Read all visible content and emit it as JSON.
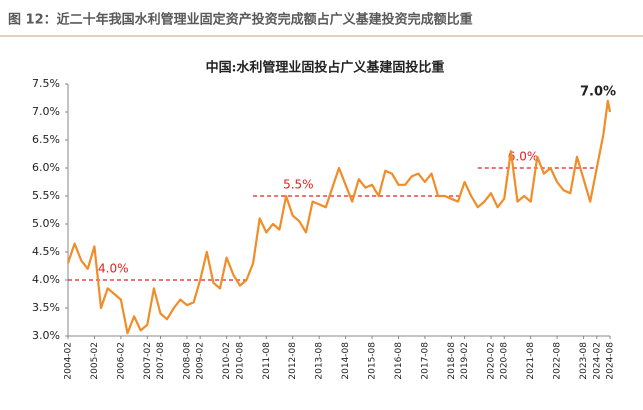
{
  "header": {
    "title": "图 12：近二十年我国水利管理业固定资产投资完成额占广义基建投资完成额比重"
  },
  "chart_data": {
    "type": "line",
    "title": "中国:水利管理业固投占广义基建固投比重",
    "x": [
      "2004-02",
      "2004-05",
      "2004-08",
      "2004-11",
      "2005-02",
      "2005-05",
      "2005-08",
      "2005-11",
      "2006-02",
      "2006-05",
      "2006-08",
      "2006-11",
      "2007-02",
      "2007-05",
      "2007-08",
      "2007-11",
      "2008-02",
      "2008-05",
      "2008-08",
      "2008-11",
      "2009-02",
      "2009-05",
      "2009-08",
      "2009-11",
      "2010-02",
      "2010-05",
      "2010-08",
      "2010-11",
      "2011-02",
      "2011-05",
      "2011-08",
      "2011-11",
      "2012-02",
      "2012-05",
      "2012-08",
      "2012-11",
      "2013-02",
      "2013-05",
      "2013-08",
      "2013-11",
      "2014-02",
      "2014-05",
      "2014-08",
      "2014-11",
      "2015-02",
      "2015-05",
      "2015-08",
      "2015-11",
      "2016-02",
      "2016-05",
      "2016-08",
      "2016-11",
      "2017-02",
      "2017-05",
      "2017-08",
      "2017-11",
      "2018-02",
      "2018-05",
      "2018-08",
      "2018-11",
      "2019-02",
      "2019-05",
      "2019-08",
      "2019-11",
      "2020-02",
      "2020-05",
      "2020-08",
      "2020-11",
      "2021-02",
      "2021-05",
      "2021-08",
      "2021-11",
      "2022-02",
      "2022-05",
      "2022-08",
      "2022-11",
      "2023-02",
      "2023-05",
      "2023-08",
      "2023-11",
      "2024-02",
      "2024-05",
      "2024-07",
      "2024-08"
    ],
    "series": [
      {
        "name": "中国:水利管理业固投占广义基建固投比重",
        "color": "#f28c28",
        "values": [
          4.3,
          4.65,
          4.35,
          4.2,
          4.6,
          3.5,
          3.85,
          3.75,
          3.65,
          3.05,
          3.35,
          3.1,
          3.2,
          3.85,
          3.4,
          3.3,
          3.5,
          3.65,
          3.55,
          3.6,
          4.0,
          4.5,
          3.95,
          3.85,
          4.4,
          4.1,
          3.9,
          4.0,
          4.3,
          5.1,
          4.85,
          5.0,
          4.9,
          5.5,
          5.15,
          5.05,
          4.85,
          5.4,
          5.35,
          5.3,
          5.65,
          6.0,
          5.7,
          5.4,
          5.8,
          5.65,
          5.7,
          5.5,
          5.95,
          5.9,
          5.7,
          5.7,
          5.85,
          5.9,
          5.75,
          5.9,
          5.5,
          5.5,
          5.45,
          5.4,
          5.75,
          5.5,
          5.3,
          5.4,
          5.55,
          5.3,
          5.45,
          6.3,
          5.4,
          5.5,
          5.4,
          6.2,
          5.9,
          6.0,
          5.75,
          5.6,
          5.55,
          6.2,
          5.8,
          5.4,
          6.0,
          6.6,
          7.2,
          7.0
        ]
      }
    ],
    "end_label": "7.0%",
    "reference_lines": [
      {
        "value": 4.0,
        "label": "4.0%",
        "start": "2004-02",
        "end": "2010-12"
      },
      {
        "value": 5.5,
        "label": "5.5%",
        "start": "2011-02",
        "end": "2019-01"
      },
      {
        "value": 6.0,
        "label": "6.0%",
        "start": "2019-08",
        "end": "2024-02"
      }
    ],
    "reference_color": "#e02020",
    "xlim": [
      "2004-02",
      "2024-08"
    ],
    "xticks": [
      "2004-02",
      "2005-02",
      "2006-02",
      "2007-02",
      "2007-08",
      "2008-08",
      "2009-02",
      "2010-02",
      "2010-08",
      "2011-08",
      "2012-08",
      "2013-08",
      "2014-08",
      "2015-08",
      "2016-08",
      "2017-08",
      "2018-08",
      "2019-02",
      "2020-02",
      "2020-08",
      "2021-08",
      "2022-08",
      "2023-08",
      "2024-02",
      "2024-08"
    ],
    "ylim": [
      3.0,
      7.5
    ],
    "yticks": [
      {
        "value": 3.0,
        "label": "3.0%"
      },
      {
        "value": 3.5,
        "label": "3.5%"
      },
      {
        "value": 4.0,
        "label": "4.0%"
      },
      {
        "value": 4.5,
        "label": "4.5%"
      },
      {
        "value": 5.0,
        "label": "5.0%"
      },
      {
        "value": 5.5,
        "label": "5.5%"
      },
      {
        "value": 6.0,
        "label": "6.0%"
      },
      {
        "value": 6.5,
        "label": "6.5%"
      },
      {
        "value": 7.0,
        "label": "7.0%"
      },
      {
        "value": 7.5,
        "label": "7.5%"
      }
    ]
  }
}
